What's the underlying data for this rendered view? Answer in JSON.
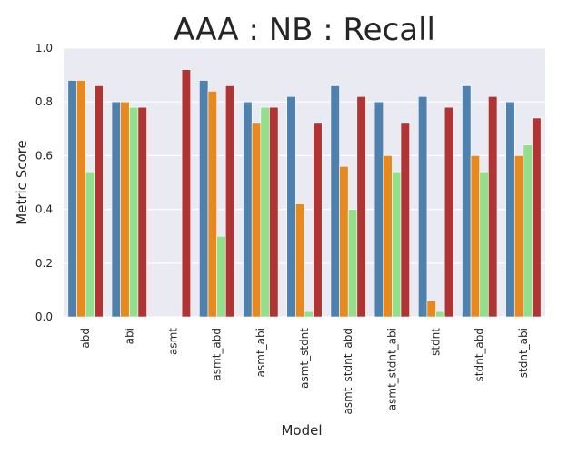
{
  "chart_data": {
    "type": "bar",
    "title": "AAA : NB : Recall",
    "xlabel": "Model",
    "ylabel": "Metric Score",
    "ylim": [
      0,
      1.0
    ],
    "yticks": [
      "0.0",
      "0.2",
      "0.4",
      "0.6",
      "0.8",
      "1.0"
    ],
    "grid": true,
    "categories": [
      "abd",
      "abi",
      "asmt",
      "asmt_abd",
      "asmt_abi",
      "asmt_stdnt",
      "asmt_stdnt_abd",
      "asmt_stdnt_abi",
      "stdnt",
      "stdnt_abd",
      "stdnt_abi"
    ],
    "series": [
      {
        "color": "#4e81ad",
        "values": [
          0.88,
          0.8,
          0.0,
          0.88,
          0.8,
          0.82,
          0.86,
          0.8,
          0.82,
          0.86,
          0.8
        ]
      },
      {
        "color": "#e8891f",
        "values": [
          0.88,
          0.8,
          0.0,
          0.84,
          0.72,
          0.42,
          0.56,
          0.6,
          0.06,
          0.6,
          0.6
        ]
      },
      {
        "color": "#93e08c",
        "values": [
          0.54,
          0.78,
          0.0,
          0.3,
          0.78,
          0.02,
          0.4,
          0.54,
          0.02,
          0.54,
          0.64
        ]
      },
      {
        "color": "#b03434",
        "values": [
          0.86,
          0.78,
          0.92,
          0.86,
          0.78,
          0.72,
          0.82,
          0.72,
          0.78,
          0.82,
          0.74
        ]
      }
    ],
    "background_color": "#eaeaf2",
    "grid_color": "#ffffff"
  }
}
